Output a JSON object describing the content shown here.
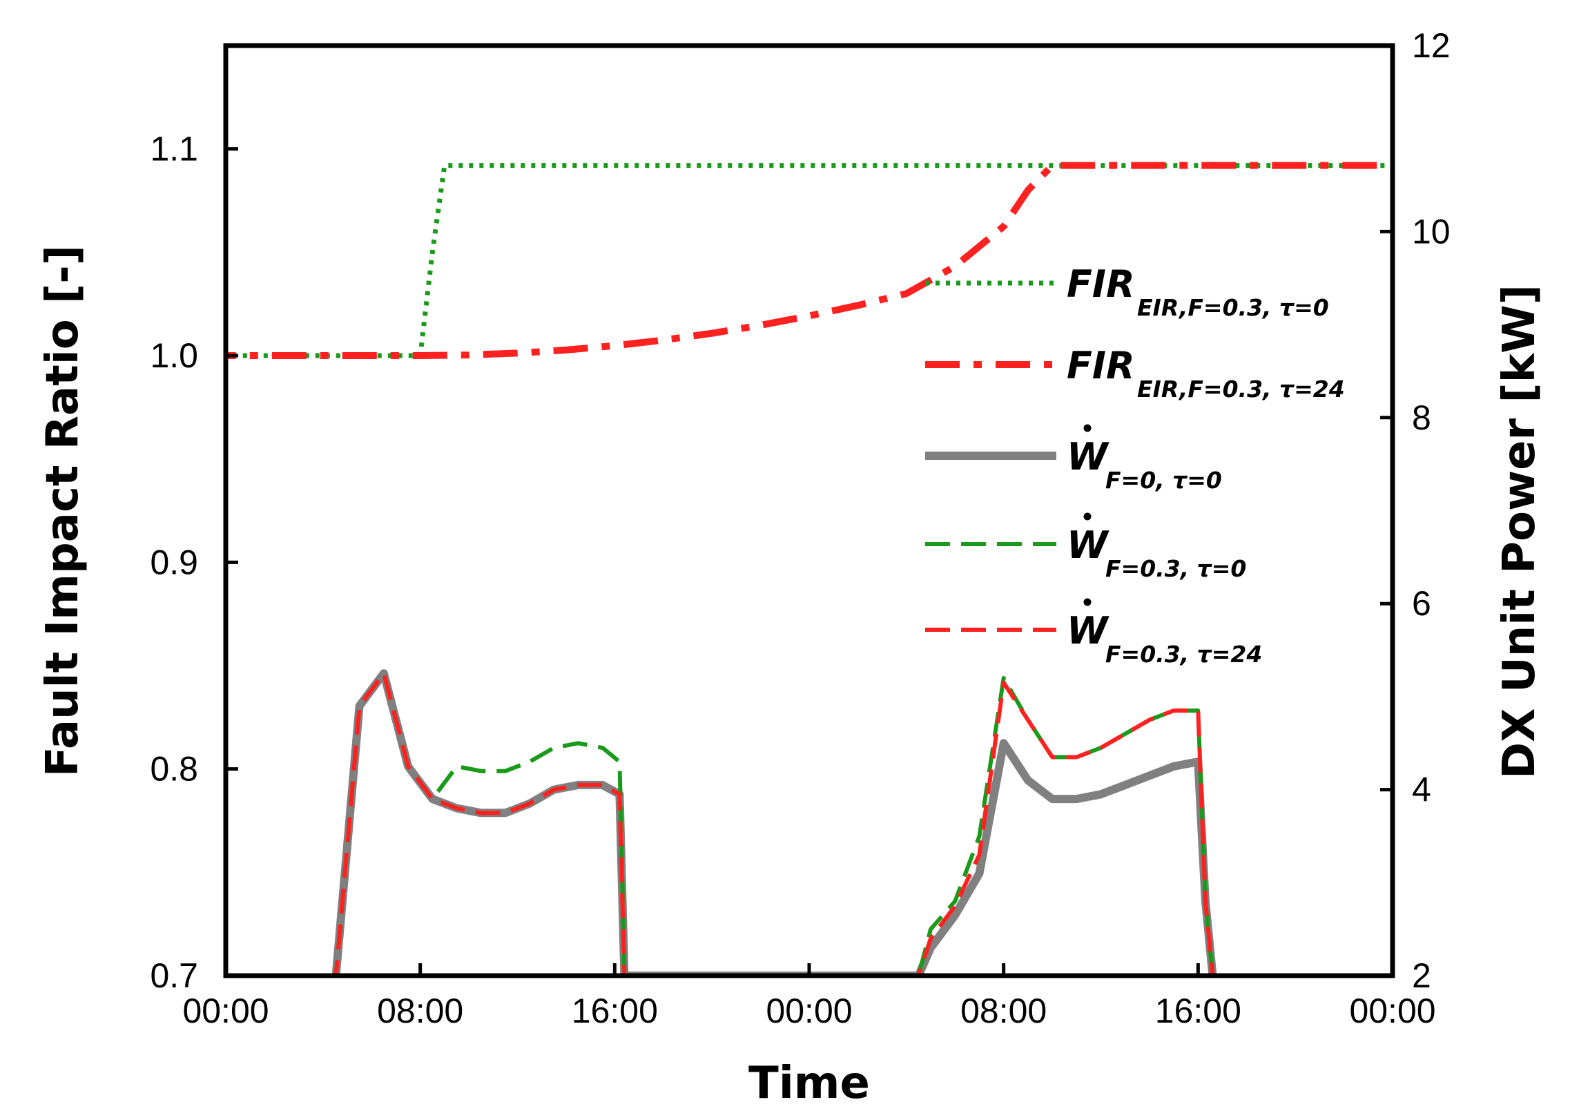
{
  "chart_data": {
    "type": "line",
    "xlabel": "Time",
    "ylabel_left": "Fault Impact Ratio [-]",
    "ylabel_right": "DX Unit Power [kW]",
    "x_unit": "hours",
    "xlim": [
      0,
      48
    ],
    "x_ticks": [
      {
        "x": 0,
        "label": "00:00"
      },
      {
        "x": 8,
        "label": "08:00"
      },
      {
        "x": 16,
        "label": "16:00"
      },
      {
        "x": 24,
        "label": "00:00"
      },
      {
        "x": 32,
        "label": "08:00"
      },
      {
        "x": 40,
        "label": "16:00"
      },
      {
        "x": 48,
        "label": "00:00"
      }
    ],
    "ylim_left": [
      0.7,
      1.15
    ],
    "y_ticks_left": [
      {
        "y": 0.7,
        "label": "0.7"
      },
      {
        "y": 0.8,
        "label": "0.8"
      },
      {
        "y": 0.9,
        "label": "0.9"
      },
      {
        "y": 1.0,
        "label": "1.0"
      },
      {
        "y": 1.1,
        "label": "1.1"
      }
    ],
    "ylim_right": [
      2,
      12
    ],
    "y_ticks_right": [
      {
        "y": 2,
        "label": "2"
      },
      {
        "y": 4,
        "label": "4"
      },
      {
        "y": 6,
        "label": "6"
      },
      {
        "y": 8,
        "label": "8"
      },
      {
        "y": 10,
        "label": "10"
      },
      {
        "y": 12,
        "label": "12"
      }
    ],
    "series": [
      {
        "name": "FIR_EIR,F=0.3,τ=0",
        "legend_main": "FIR",
        "legend_sub": "EIR,F=0.3, τ=0",
        "axis": "left",
        "color": "#1a9a1a",
        "style": "dotted",
        "width": 7,
        "x": [
          -1,
          8,
          8.5,
          9,
          49
        ],
        "y": [
          1.0,
          1.0,
          1.05,
          1.092,
          1.092
        ]
      },
      {
        "name": "FIR_EIR,F=0.3,τ=24",
        "legend_main": "FIR",
        "legend_sub": "EIR,F=0.3, τ=24",
        "axis": "left",
        "color": "#ff2020",
        "style": "dashdot",
        "width": 10,
        "x": [
          -1,
          8,
          10,
          12,
          14,
          16,
          18,
          20,
          22,
          24,
          26,
          28,
          30,
          32,
          33,
          34,
          49
        ],
        "y": [
          1.0,
          1.0,
          1.0003,
          1.0012,
          1.0027,
          1.0048,
          1.0075,
          1.0108,
          1.0147,
          1.0192,
          1.0243,
          1.03,
          1.0432,
          1.0625,
          1.08,
          1.092,
          1.092
        ]
      },
      {
        "name": "W_F=0,τ=0",
        "legend_main": "W",
        "legend_sub": "F=0, τ=0",
        "legend_dot": true,
        "axis": "right",
        "color": "#808080",
        "style": "solid",
        "width": 12,
        "x": [
          4.5,
          5.5,
          6.5,
          7.5,
          8.5,
          9.5,
          10.5,
          11.5,
          12.5,
          13.5,
          14.5,
          15.5,
          16.2,
          16.4,
          28.5,
          29.0,
          30.0,
          31.0,
          32.0,
          33.0,
          34.0,
          35.0,
          36.0,
          37.0,
          38.0,
          39.0,
          40.0,
          40.3,
          40.6
        ],
        "y": [
          1.9,
          4.9,
          5.25,
          4.25,
          3.9,
          3.8,
          3.75,
          3.75,
          3.85,
          4.0,
          4.05,
          4.05,
          3.95,
          2.0,
          2.0,
          2.3,
          2.65,
          3.1,
          4.5,
          4.1,
          3.9,
          3.9,
          3.95,
          4.05,
          4.15,
          4.25,
          4.3,
          2.8,
          2.0
        ]
      },
      {
        "name": "W_F=0.3,τ=0",
        "legend_main": "W",
        "legend_sub": "F=0.3, τ=0",
        "legend_dot": true,
        "axis": "right",
        "color": "#1a9a1a",
        "style": "dashed",
        "width": 6,
        "x": [
          4.5,
          5.5,
          6.5,
          7.5,
          8.5,
          9.5,
          10.5,
          11.5,
          12.5,
          13.5,
          14.5,
          15.5,
          16.2,
          16.4,
          28.5,
          29.0,
          30.0,
          31.0,
          32.0,
          33.0,
          34.0,
          35.0,
          36.0,
          37.0,
          38.0,
          39.0,
          40.0,
          40.3,
          40.6
        ],
        "y": [
          1.9,
          4.9,
          5.25,
          4.25,
          3.9,
          4.25,
          4.2,
          4.2,
          4.3,
          4.45,
          4.5,
          4.45,
          4.3,
          2.0,
          2.0,
          2.5,
          2.8,
          3.5,
          5.2,
          4.75,
          4.35,
          4.35,
          4.45,
          4.6,
          4.75,
          4.85,
          4.85,
          2.8,
          2.0
        ]
      },
      {
        "name": "W_F=0.3,τ=24",
        "legend_main": "W",
        "legend_sub": "F=0.3, τ=24",
        "legend_dot": true,
        "axis": "right",
        "color": "#ff2020",
        "style": "dashed",
        "width": 6,
        "x": [
          4.5,
          5.5,
          6.5,
          7.5,
          8.5,
          9.5,
          10.5,
          11.5,
          12.5,
          13.5,
          14.5,
          15.5,
          16.2,
          16.4,
          28.5,
          29.0,
          30.0,
          31.0,
          32.0,
          33.0,
          34.0,
          35.0,
          36.0,
          37.0,
          38.0,
          39.0,
          40.0,
          40.3,
          40.6
        ],
        "y": [
          1.9,
          4.9,
          5.25,
          4.25,
          3.9,
          3.8,
          3.75,
          3.75,
          3.85,
          4.0,
          4.05,
          4.05,
          3.95,
          2.0,
          2.0,
          2.4,
          2.75,
          3.3,
          5.15,
          4.75,
          4.35,
          4.35,
          4.45,
          4.6,
          4.75,
          4.85,
          4.85,
          2.8,
          2.0
        ]
      }
    ]
  }
}
